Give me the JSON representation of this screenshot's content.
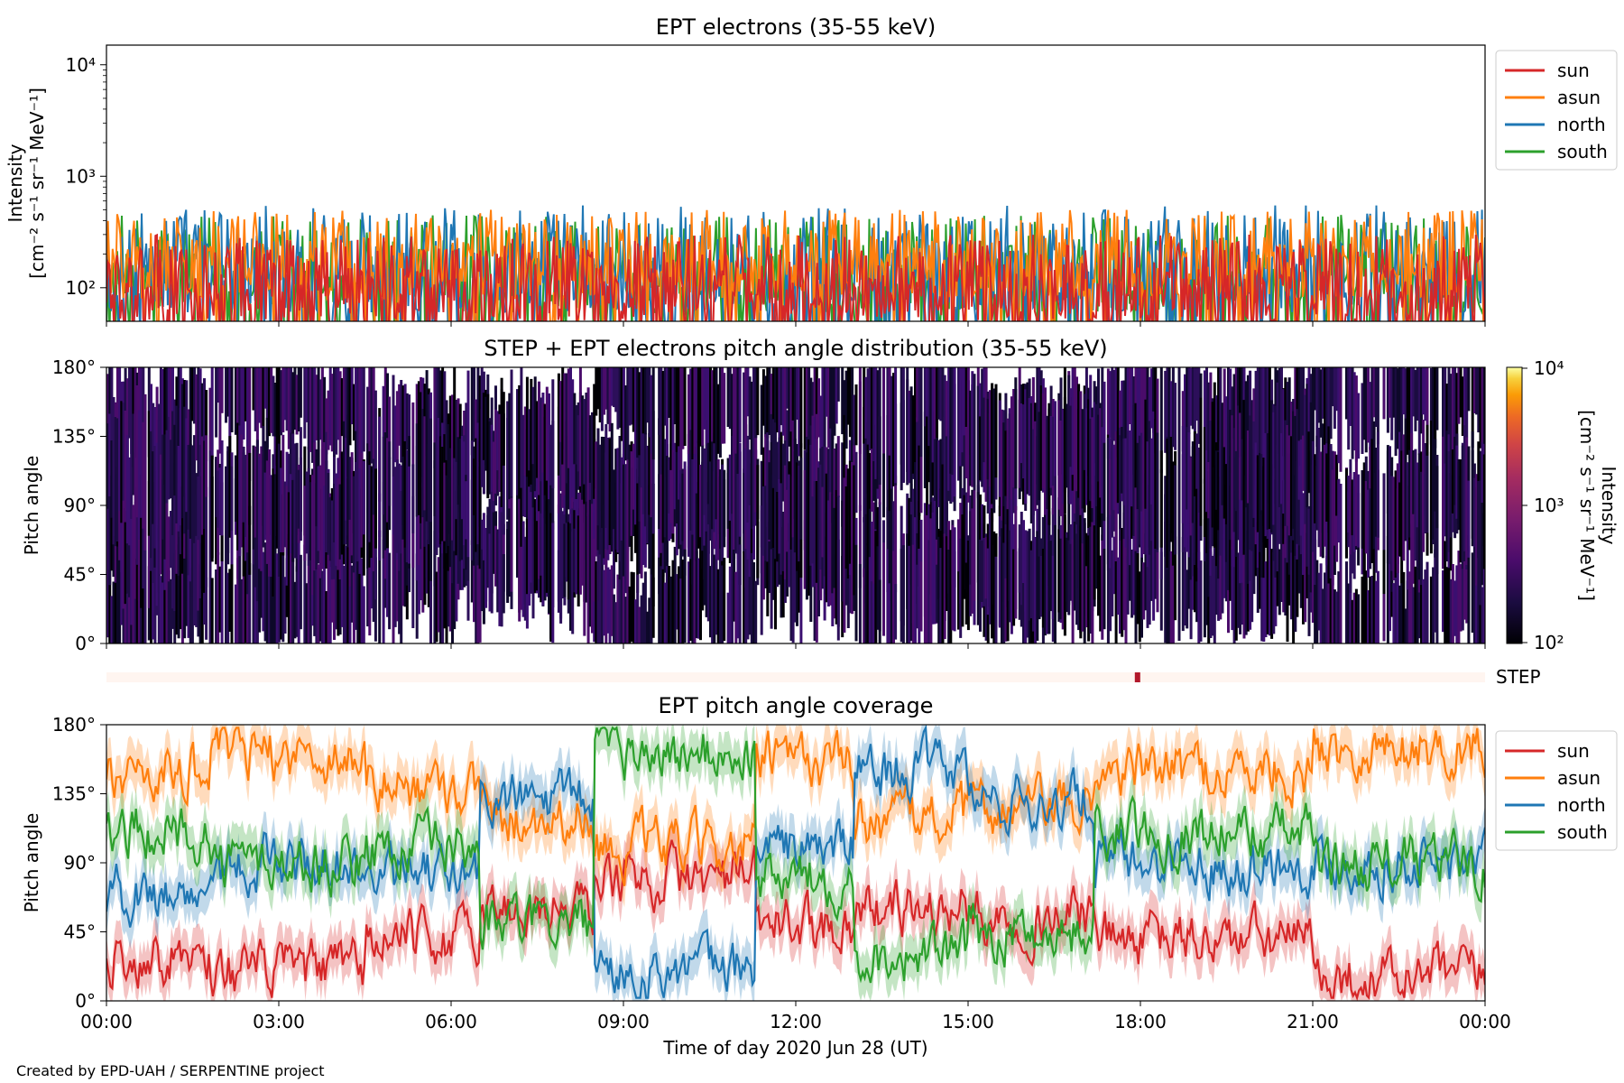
{
  "credit": "Created by EPD-UAH / SERPENTINE project",
  "xlabel": "Time of day 2020 Jun 28 (UT)",
  "x_ticks": [
    "00:00",
    "03:00",
    "06:00",
    "09:00",
    "12:00",
    "15:00",
    "18:00",
    "21:00",
    "00:00"
  ],
  "colors": {
    "sun": "#d62728",
    "asun": "#ff7f0e",
    "north": "#1f77b4",
    "south": "#2ca02c"
  },
  "chart_data": [
    {
      "type": "line",
      "title": "EPT electrons (35-55 keV)",
      "ylabel_line1": "Intensity",
      "ylabel_line2": "[cm⁻² s⁻¹ sr⁻¹ MeV⁻¹]",
      "yscale": "log",
      "ylim": [
        50,
        15000
      ],
      "y_ticks": [
        "10²",
        "10³",
        "10⁴"
      ],
      "x_range_hours": [
        0,
        24
      ],
      "legend": [
        "sun",
        "asun",
        "north",
        "south"
      ],
      "legend_position": "outside-right",
      "series": [
        {
          "name": "sun",
          "typical_range": [
            50,
            300
          ]
        },
        {
          "name": "asun",
          "typical_range": [
            80,
            500
          ]
        },
        {
          "name": "north",
          "typical_range": [
            60,
            550
          ]
        },
        {
          "name": "south",
          "typical_range": [
            60,
            450
          ]
        }
      ]
    },
    {
      "type": "heatmap",
      "title": "STEP + EPT electrons pitch angle distribution (35-55 keV)",
      "ylabel": "Pitch angle",
      "ylim": [
        0,
        180
      ],
      "y_ticks": [
        "0°",
        "45°",
        "90°",
        "135°",
        "180°"
      ],
      "colorbar": {
        "label_line1": "Intensity",
        "label_line2": "[cm⁻² s⁻¹ sr⁻¹ MeV⁻¹]",
        "scale": "log",
        "range": [
          100,
          10000
        ],
        "ticks": [
          "10²",
          "10³",
          "10⁴"
        ],
        "colormap": "inferno"
      }
    },
    {
      "type": "bar",
      "label": "STEP",
      "marker_hour": 17.95
    },
    {
      "type": "line",
      "title": "EPT pitch angle coverage",
      "ylabel": "Pitch angle",
      "ylim": [
        0,
        180
      ],
      "y_ticks": [
        "0°",
        "45°",
        "90°",
        "135°",
        "180°"
      ],
      "legend": [
        "sun",
        "asun",
        "north",
        "south"
      ],
      "legend_position": "outside-right",
      "segments": [
        {
          "hours": [
            0.0,
            1.8
          ],
          "sun": 30,
          "asun": 150,
          "north": 70,
          "south": 110
        },
        {
          "hours": [
            1.8,
            4.5
          ],
          "sun": 20,
          "asun": 160,
          "north": 90,
          "south": 90
        },
        {
          "hours": [
            4.5,
            6.5
          ],
          "sun": 40,
          "asun": 140,
          "north": 80,
          "south": 100
        },
        {
          "hours": [
            6.5,
            8.5
          ],
          "sun": 60,
          "asun": 120,
          "north": 130,
          "south": 50
        },
        {
          "hours": [
            8.5,
            11.3
          ],
          "sun": 80,
          "asun": 100,
          "north": 20,
          "south": 160
        },
        {
          "hours": [
            11.3,
            13.0
          ],
          "sun": 50,
          "asun": 155,
          "north": 100,
          "south": 80
        },
        {
          "hours": [
            13.0,
            15.0
          ],
          "sun": 60,
          "asun": 120,
          "north": 150,
          "south": 30
        },
        {
          "hours": [
            15.0,
            17.2
          ],
          "sun": 55,
          "asun": 125,
          "north": 130,
          "south": 45
        },
        {
          "hours": [
            17.2,
            21.0
          ],
          "sun": 40,
          "asun": 150,
          "north": 90,
          "south": 110
        },
        {
          "hours": [
            21.0,
            24.0
          ],
          "sun": 15,
          "asun": 165,
          "north": 90,
          "south": 90
        }
      ]
    }
  ]
}
